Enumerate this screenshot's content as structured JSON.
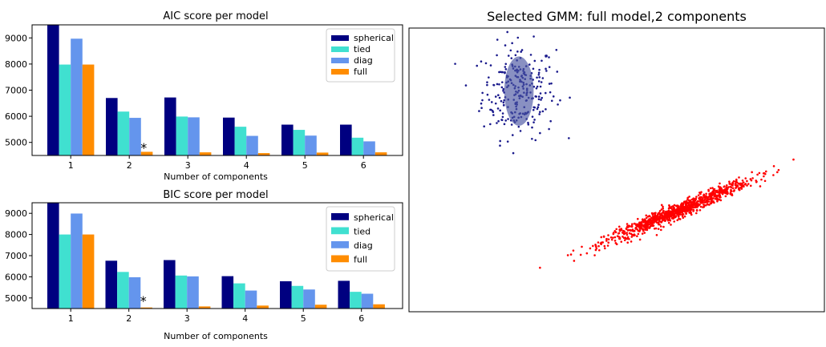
{
  "colors": {
    "spherical": "#000080",
    "tied": "#40e0d0",
    "diag": "#6495ed",
    "full": "#ff8c00",
    "cluster_blue": "#1a1a8c",
    "cluster_red": "#ff0000",
    "ellipse_fill": "#4a55a2"
  },
  "chart_data": [
    {
      "type": "bar",
      "title": "AIC score per model",
      "xlabel": "Number of components",
      "ylabel": "",
      "categories": [
        "1",
        "2",
        "3",
        "4",
        "5",
        "6"
      ],
      "yticks": [
        "5000",
        "6000",
        "7000",
        "8000",
        "9000"
      ],
      "ylim": [
        4500,
        9500
      ],
      "legend_position": "top-right",
      "grid": false,
      "series": [
        {
          "name": "spherical",
          "values": [
            9500,
            6700,
            6720,
            5950,
            5680,
            5680
          ]
        },
        {
          "name": "tied",
          "values": [
            7980,
            6180,
            5990,
            5600,
            5480,
            5180
          ]
        },
        {
          "name": "diag",
          "values": [
            8970,
            5940,
            5960,
            5250,
            5260,
            5040
          ]
        },
        {
          "name": "full",
          "values": [
            7980,
            4640,
            4620,
            4590,
            4610,
            4620
          ]
        }
      ],
      "annotation": {
        "text": "*",
        "category": "2"
      }
    },
    {
      "type": "bar",
      "title": "BIC score per model",
      "xlabel": "Number of components",
      "ylabel": "",
      "categories": [
        "1",
        "2",
        "3",
        "4",
        "5",
        "6"
      ],
      "yticks": [
        "5000",
        "6000",
        "7000",
        "8000",
        "9000"
      ],
      "ylim": [
        4500,
        9500
      ],
      "legend_position": "top-right",
      "grid": false,
      "series": [
        {
          "name": "spherical",
          "values": [
            9500,
            6760,
            6790,
            6030,
            5790,
            5810
          ]
        },
        {
          "name": "tied",
          "values": [
            8000,
            6230,
            6060,
            5690,
            5570,
            5290
          ]
        },
        {
          "name": "diag",
          "values": [
            8990,
            5980,
            6020,
            5350,
            5400,
            5200
          ]
        },
        {
          "name": "full",
          "values": [
            8000,
            4550,
            4600,
            4640,
            4680,
            4700
          ]
        }
      ],
      "annotation": {
        "text": "*",
        "category": "2"
      }
    },
    {
      "type": "scatter",
      "title": "Selected GMM: full model,2 components",
      "xlabel": "",
      "ylabel": "",
      "xlim": [
        -5,
        12
      ],
      "ylim": [
        -3,
        6
      ],
      "ticks_visible": false,
      "clusters": [
        {
          "color": "cluster_blue",
          "center": [
            -0.5,
            4.0
          ],
          "sd": [
            0.75,
            0.75
          ],
          "rho": 0,
          "n": 260
        },
        {
          "color": "cluster_red",
          "center": [
            6.0,
            0.2
          ],
          "sd": [
            1.5,
            0.5
          ],
          "rho": 0.97,
          "n": 1000
        }
      ],
      "ellipse": {
        "center": [
          -0.5,
          4.0
        ],
        "rx": 0.6,
        "ry": 1.1
      }
    }
  ]
}
